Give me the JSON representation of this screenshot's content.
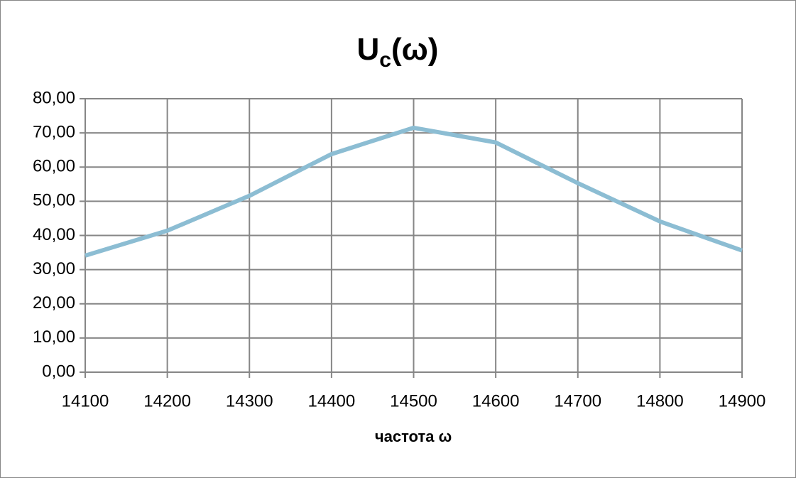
{
  "chart_data": {
    "type": "line",
    "title": "U",
    "title_subscript": "c",
    "title_suffix": "(ω)",
    "x_label": "частота ω",
    "x": [
      14100,
      14200,
      14300,
      14400,
      14500,
      14600,
      14700,
      14800,
      14900
    ],
    "series": [
      {
        "name": "Uc(ω)",
        "color": "#8cbdd3",
        "values": [
          34.1,
          41.4,
          51.6,
          63.8,
          71.5,
          67.2,
          55.3,
          44.1,
          35.6
        ]
      }
    ],
    "xlim": [
      14100,
      14900
    ],
    "xticks": [
      14100,
      14200,
      14300,
      14400,
      14500,
      14600,
      14700,
      14800,
      14900
    ],
    "ylim": [
      0,
      80
    ],
    "yticks": [
      {
        "value": 0,
        "label": "0,00"
      },
      {
        "value": 10,
        "label": "10,00"
      },
      {
        "value": 20,
        "label": "20,00"
      },
      {
        "value": 30,
        "label": "30,00"
      },
      {
        "value": 40,
        "label": "40,00"
      },
      {
        "value": 50,
        "label": "50,00"
      },
      {
        "value": 60,
        "label": "60,00"
      },
      {
        "value": 70,
        "label": "70,00"
      },
      {
        "value": 80,
        "label": "80,00"
      }
    ],
    "grid": true,
    "legend": false
  }
}
